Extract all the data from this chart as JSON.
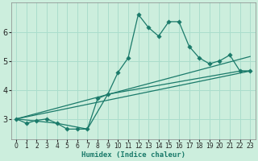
{
  "xlabel": "Humidex (Indice chaleur)",
  "bg_color": "#cceedd",
  "grid_color": "#aaddcc",
  "line_color": "#1a7a6a",
  "xlim": [
    -0.5,
    23.5
  ],
  "ylim": [
    2.3,
    7.0
  ],
  "xticks": [
    0,
    1,
    2,
    3,
    4,
    5,
    6,
    7,
    8,
    9,
    10,
    11,
    12,
    13,
    14,
    15,
    16,
    17,
    18,
    19,
    20,
    21,
    22,
    23
  ],
  "yticks": [
    3,
    4,
    5,
    6
  ],
  "series1_x": [
    0,
    1,
    2,
    3,
    4,
    5,
    6,
    7,
    8,
    9,
    10,
    11,
    12,
    13,
    14,
    15,
    16,
    17,
    18,
    19,
    20,
    21,
    22,
    23
  ],
  "series1_y": [
    3.0,
    2.85,
    2.95,
    3.0,
    2.85,
    2.65,
    2.65,
    2.65,
    3.7,
    3.85,
    4.6,
    5.1,
    6.6,
    6.15,
    5.85,
    6.35,
    6.35,
    5.5,
    5.1,
    4.9,
    5.0,
    5.2,
    4.65,
    4.65
  ],
  "series2_x": [
    0,
    23
  ],
  "series2_y": [
    3.0,
    4.65
  ],
  "series3_x": [
    0,
    23
  ],
  "series3_y": [
    3.0,
    5.15
  ],
  "series4_x": [
    0,
    4,
    7,
    9,
    22,
    23
  ],
  "series4_y": [
    3.0,
    2.85,
    2.65,
    3.85,
    4.65,
    4.65
  ]
}
